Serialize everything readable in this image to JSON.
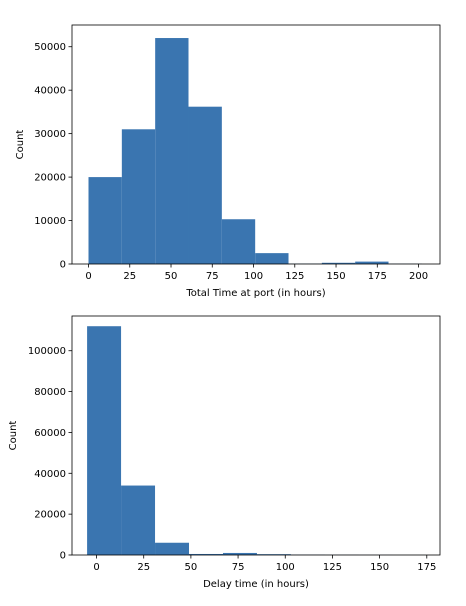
{
  "chart_data": [
    {
      "type": "bar",
      "title": "",
      "xlabel": "Total Time at port (in hours)",
      "ylabel": "Count",
      "xlim": [
        -10,
        213
      ],
      "ylim": [
        0,
        55000
      ],
      "bin_edges": [
        0,
        20.2,
        40.4,
        60.6,
        80.8,
        101,
        121.2,
        141.4,
        161.6,
        181.8,
        202
      ],
      "values": [
        20000,
        31000,
        52000,
        36200,
        10300,
        2500,
        80,
        280,
        550,
        60
      ],
      "xticks": [
        0,
        25,
        50,
        75,
        100,
        125,
        150,
        175,
        200
      ],
      "yticks": [
        0,
        10000,
        20000,
        30000,
        40000,
        50000
      ],
      "grid": false,
      "color": "#3a75b0"
    },
    {
      "type": "bar",
      "title": "",
      "xlabel": "Delay time (in hours)",
      "ylabel": "Count",
      "xlim": [
        -13,
        182
      ],
      "ylim": [
        0,
        117000
      ],
      "bin_edges": [
        -5,
        13,
        31,
        49,
        67,
        85,
        103,
        121,
        139,
        157,
        175
      ],
      "values": [
        112000,
        34000,
        6000,
        500,
        1000,
        400,
        150,
        80,
        50,
        30
      ],
      "xticks": [
        0,
        25,
        50,
        75,
        100,
        125,
        150,
        175
      ],
      "yticks": [
        0,
        20000,
        40000,
        60000,
        80000,
        100000
      ],
      "grid": false,
      "color": "#3a75b0"
    }
  ]
}
